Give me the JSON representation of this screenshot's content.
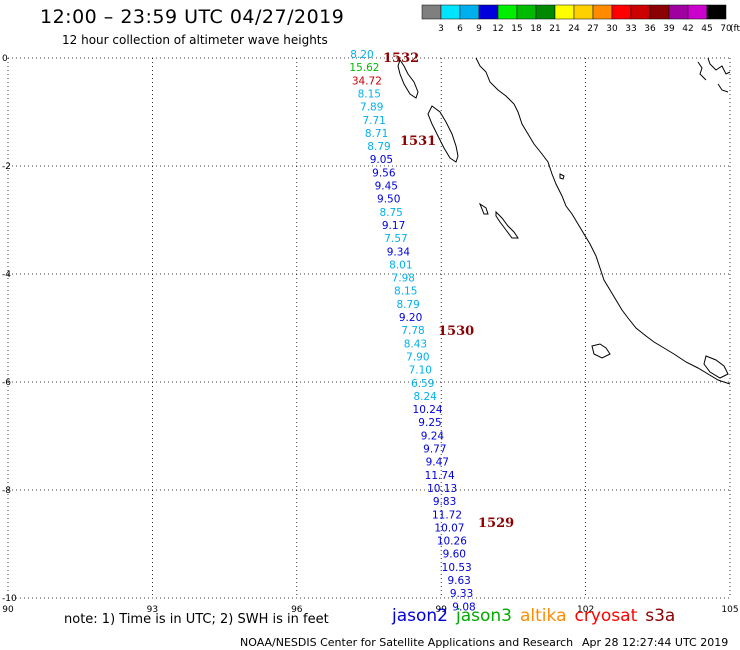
{
  "header": {
    "title": "12:00 – 23:59 UTC 04/27/2019",
    "subtitle": "12 hour collection of altimeter wave heights"
  },
  "legend": {
    "unit": "(ft)",
    "bins": [
      {
        "label": "3",
        "color": "#7f7f7f"
      },
      {
        "label": "6",
        "color": "#00e5ff"
      },
      {
        "label": "9",
        "color": "#00b0ee"
      },
      {
        "label": "12",
        "color": "#0000dd"
      },
      {
        "label": "15",
        "color": "#00ee00"
      },
      {
        "label": "18",
        "color": "#00bb00"
      },
      {
        "label": "21",
        "color": "#008800"
      },
      {
        "label": "24",
        "color": "#ffff00"
      },
      {
        "label": "27",
        "color": "#ffd000"
      },
      {
        "label": "30",
        "color": "#ff8c00"
      },
      {
        "label": "33",
        "color": "#ff0000"
      },
      {
        "label": "36",
        "color": "#cc0000"
      },
      {
        "label": "39",
        "color": "#8b0000"
      },
      {
        "label": "42",
        "color": "#a000a0"
      },
      {
        "label": "45",
        "color": "#cc00cc"
      },
      {
        "label": "70",
        "color": "#000000"
      }
    ]
  },
  "map": {
    "lon_range": [
      90,
      105
    ],
    "lat_range": [
      -10,
      0
    ],
    "x_ticks": [
      "90",
      "93",
      "96",
      "99",
      "102",
      "105"
    ],
    "y_ticks": [
      "0",
      "-2",
      "-4",
      "-6",
      "-8",
      "-10"
    ],
    "wave_heights": [
      {
        "v": "8.20",
        "c": "#00b0ee"
      },
      {
        "v": "15.62",
        "c": "#00bb00"
      },
      {
        "v": "34.72",
        "c": "#cc0000"
      },
      {
        "v": "8.15",
        "c": "#00b0ee"
      },
      {
        "v": "7.89",
        "c": "#00b0ee"
      },
      {
        "v": "7.71",
        "c": "#00b0ee"
      },
      {
        "v": "8.71",
        "c": "#00b0ee"
      },
      {
        "v": "8.79",
        "c": "#00b0ee"
      },
      {
        "v": "9.05",
        "c": "#0000dd"
      },
      {
        "v": "9.56",
        "c": "#0000dd"
      },
      {
        "v": "9.45",
        "c": "#0000dd"
      },
      {
        "v": "9.50",
        "c": "#0000dd"
      },
      {
        "v": "8.75",
        "c": "#00b0ee"
      },
      {
        "v": "9.17",
        "c": "#0000dd"
      },
      {
        "v": "7.57",
        "c": "#00b0ee"
      },
      {
        "v": "9.34",
        "c": "#0000dd"
      },
      {
        "v": "8.01",
        "c": "#00b0ee"
      },
      {
        "v": "7.98",
        "c": "#00b0ee"
      },
      {
        "v": "8.15",
        "c": "#00b0ee"
      },
      {
        "v": "8.79",
        "c": "#00b0ee"
      },
      {
        "v": "9.20",
        "c": "#0000dd"
      },
      {
        "v": "7.78",
        "c": "#00b0ee"
      },
      {
        "v": "8.43",
        "c": "#00b0ee"
      },
      {
        "v": "7.90",
        "c": "#00b0ee"
      },
      {
        "v": "7.10",
        "c": "#00b0ee"
      },
      {
        "v": "6.59",
        "c": "#00b0ee"
      },
      {
        "v": "8.24",
        "c": "#00b0ee"
      },
      {
        "v": "10.24",
        "c": "#0000dd"
      },
      {
        "v": "9.25",
        "c": "#0000dd"
      },
      {
        "v": "9.24",
        "c": "#0000dd"
      },
      {
        "v": "9.77",
        "c": "#0000dd"
      },
      {
        "v": "9.47",
        "c": "#0000dd"
      },
      {
        "v": "11.74",
        "c": "#0000dd"
      },
      {
        "v": "10.13",
        "c": "#0000dd"
      },
      {
        "v": "9.83",
        "c": "#0000dd"
      },
      {
        "v": "11.72",
        "c": "#0000dd"
      },
      {
        "v": "10.07",
        "c": "#0000dd"
      },
      {
        "v": "10.26",
        "c": "#0000dd"
      },
      {
        "v": "9.60",
        "c": "#0000dd"
      },
      {
        "v": "10.53",
        "c": "#0000dd"
      },
      {
        "v": "9.63",
        "c": "#0000dd"
      },
      {
        "v": "9.33",
        "c": "#0000dd"
      },
      {
        "v": "9.08",
        "c": "#0000dd"
      }
    ],
    "pass_times": [
      "1532",
      "1531",
      "1530",
      "1529"
    ],
    "pass_time_color": "#8b0000"
  },
  "footer": {
    "note": "note:  1) Time is in UTC;  2) SWH is in feet",
    "satellites": [
      {
        "name": "jason2",
        "color": "#0000dd"
      },
      {
        "name": "jason3",
        "color": "#00aa00"
      },
      {
        "name": "altika",
        "color": "#ff8c00"
      },
      {
        "name": "cryosat",
        "color": "#ff0000"
      },
      {
        "name": "s3a",
        "color": "#8b0000"
      }
    ],
    "credit": "NOAA/NESDIS Center for Satellite Applications and Research",
    "timestamp": "Apr 28 12:27:44 UTC 2019"
  }
}
